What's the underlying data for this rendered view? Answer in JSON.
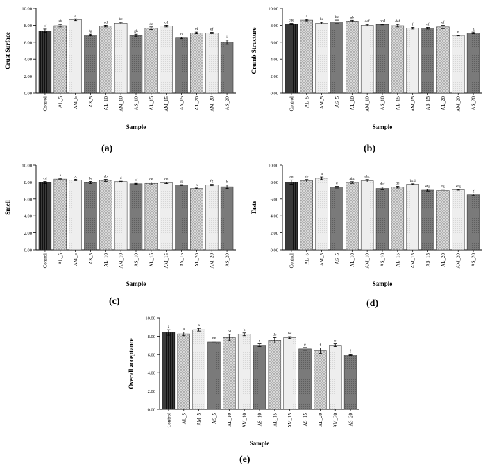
{
  "chart_data": [
    {
      "panel": "(a)",
      "type": "bar",
      "ylabel": "Crust Surface",
      "xlabel": "Sample",
      "ylim": [
        0,
        10
      ],
      "yticks": [
        "0.00",
        "2.00",
        "4.00",
        "6.00",
        "8.00",
        "10.00"
      ],
      "categories": [
        "Control",
        "AL_5",
        "AM_5",
        "AS_5",
        "AL_10",
        "AM_10",
        "AS_10",
        "AL_15",
        "AM_15",
        "AS_15",
        "AL_20",
        "AM_20",
        "AS_20"
      ],
      "values": [
        7.35,
        7.95,
        8.65,
        6.85,
        7.9,
        8.25,
        6.8,
        7.65,
        7.9,
        6.5,
        7.1,
        7.1,
        6.0
      ],
      "errors": [
        0.2,
        0.15,
        0.1,
        0.1,
        0.1,
        0.1,
        0.15,
        0.15,
        0.1,
        0.08,
        0.1,
        0.08,
        0.25
      ],
      "letters": [
        "ef",
        "ab",
        "a",
        "fg",
        "cd",
        "bc",
        "gh",
        "de",
        "cd",
        "h",
        "ef",
        "ef",
        "i"
      ]
    },
    {
      "panel": "(b)",
      "type": "bar",
      "ylabel": "Crumb Structure",
      "xlabel": "Sample",
      "ylim": [
        0,
        10
      ],
      "yticks": [
        "0.00",
        "2.00",
        "4.00",
        "6.00",
        "8.00",
        "10.00"
      ],
      "categories": [
        "Control",
        "AL_5",
        "AM_5",
        "AS_5",
        "AL_10",
        "AM_10",
        "AS_10",
        "AL_15",
        "AM_15",
        "AS_15",
        "AL_20",
        "AM_20",
        "AS_20"
      ],
      "values": [
        8.15,
        8.6,
        8.25,
        8.4,
        8.5,
        8.0,
        8.1,
        7.95,
        7.65,
        7.65,
        7.8,
        6.8,
        7.1
      ],
      "errors": [
        0.08,
        0.08,
        0.1,
        0.2,
        0.08,
        0.1,
        0.05,
        0.15,
        0.1,
        0.1,
        0.2,
        0.05,
        0.1
      ],
      "letters": [
        "cde",
        "a",
        "bc",
        "bc",
        "ab",
        "def",
        "bcd",
        "def",
        "f",
        "ef",
        "ef",
        "h",
        "g"
      ]
    },
    {
      "panel": "(c)",
      "type": "bar",
      "ylabel": "Smell",
      "xlabel": "Sample",
      "ylim": [
        0,
        10
      ],
      "yticks": [
        "0.00",
        "2.00",
        "4.00",
        "6.00",
        "8.00",
        "10.00"
      ],
      "categories": [
        "Control",
        "AL_5",
        "AM_5",
        "AS_5",
        "AL_10",
        "AM_10",
        "AS_10",
        "AL_15",
        "AM_15",
        "AS_15",
        "AL_20",
        "AM_20",
        "AS_20"
      ],
      "values": [
        7.95,
        8.35,
        8.25,
        7.95,
        8.2,
        8.05,
        7.8,
        7.85,
        7.9,
        7.65,
        7.25,
        7.65,
        7.45
      ],
      "errors": [
        0.12,
        0.08,
        0.08,
        0.12,
        0.12,
        0.05,
        0.05,
        0.15,
        0.08,
        0.05,
        0.05,
        0.08,
        0.2
      ],
      "letters": [
        "cd",
        "a",
        "bc",
        "bc",
        "ab",
        "d",
        "ef",
        "de",
        "de",
        "g",
        "h",
        "fg",
        "h"
      ]
    },
    {
      "panel": "(d)",
      "type": "bar",
      "ylabel": "Taste",
      "xlabel": "Sample",
      "ylim": [
        0,
        10
      ],
      "yticks": [
        "0.00",
        "2.00",
        "4.00",
        "6.00",
        "8.00",
        "10.00"
      ],
      "categories": [
        "Control",
        "AL_5",
        "AM_5",
        "AS_5",
        "AL_10",
        "AM_10",
        "AS_10",
        "AL_15",
        "AM_15",
        "AS_15",
        "AL_20",
        "AM_20",
        "AS_20"
      ],
      "values": [
        8.0,
        8.15,
        8.45,
        7.4,
        7.95,
        8.15,
        7.25,
        7.4,
        7.75,
        7.05,
        7.0,
        7.1,
        6.5
      ],
      "errors": [
        0.25,
        0.15,
        0.15,
        0.1,
        0.1,
        0.15,
        0.15,
        0.1,
        0.05,
        0.1,
        0.15,
        0.05,
        0.1
      ],
      "letters": [
        "cd",
        "ab",
        "a",
        "e",
        "abc",
        "abc",
        "def",
        "de",
        "bcd",
        "efg",
        "fg",
        "efg",
        "g"
      ]
    },
    {
      "panel": "(e)",
      "type": "bar",
      "ylabel": "Overall acceptance",
      "xlabel": "Sample",
      "ylim": [
        0,
        10
      ],
      "yticks": [
        "0.00",
        "2.00",
        "4.00",
        "6.00",
        "8.00",
        "10.00"
      ],
      "categories": [
        "Control",
        "AL_5",
        "AM_5",
        "AS_5",
        "AL_10",
        "AM_10",
        "AS_10",
        "AL_15",
        "AM_15",
        "AS_15",
        "AL_20",
        "AM_20",
        "AS_20"
      ],
      "values": [
        8.4,
        8.25,
        8.7,
        7.35,
        7.85,
        8.2,
        7.0,
        7.55,
        7.85,
        6.6,
        6.4,
        7.0,
        5.95
      ],
      "errors": [
        0.3,
        0.2,
        0.15,
        0.1,
        0.35,
        0.15,
        0.15,
        0.3,
        0.1,
        0.15,
        0.3,
        0.15,
        0.08
      ],
      "letters": [
        "a",
        "a",
        "a",
        "de",
        "cd",
        "b",
        "e",
        "de",
        "bc",
        "e",
        "f",
        "e",
        "f"
      ]
    }
  ]
}
